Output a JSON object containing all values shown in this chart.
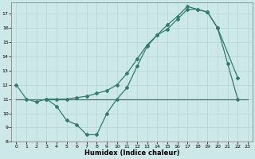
{
  "xlabel": "Humidex (Indice chaleur)",
  "bg_color": "#cde8e8",
  "line_color": "#2e7d6e",
  "xlim": [
    -0.5,
    23.5
  ],
  "ylim": [
    8,
    17.8
  ],
  "yticks": [
    8,
    9,
    10,
    11,
    12,
    13,
    14,
    15,
    16,
    17
  ],
  "xticks": [
    0,
    1,
    2,
    3,
    4,
    5,
    6,
    7,
    8,
    9,
    10,
    11,
    12,
    13,
    14,
    15,
    16,
    17,
    18,
    19,
    20,
    21,
    22,
    23
  ],
  "line1_x": [
    0,
    23
  ],
  "line1_y": [
    11,
    11
  ],
  "line2_x": [
    0,
    1,
    2,
    3,
    4,
    5,
    6,
    7,
    8,
    9,
    10,
    11,
    12,
    13,
    14,
    15,
    16,
    17,
    18,
    19,
    20,
    21,
    22
  ],
  "line2_y": [
    12,
    11,
    10.8,
    11,
    10.5,
    9.5,
    9.2,
    8.5,
    8.5,
    10.0,
    11.0,
    11.8,
    13.3,
    14.7,
    15.5,
    15.9,
    16.6,
    17.3,
    17.3,
    17.1,
    16.0,
    13.5,
    11.0
  ],
  "line3_x": [
    3,
    4,
    5,
    6,
    7,
    8,
    9,
    10,
    11,
    12,
    13,
    14,
    15,
    16,
    17,
    18,
    19,
    20,
    22
  ],
  "line3_y": [
    11,
    11,
    11,
    11.1,
    11.2,
    11.4,
    11.6,
    12.0,
    12.8,
    13.8,
    14.8,
    15.5,
    16.2,
    16.8,
    17.5,
    17.3,
    17.1,
    16.0,
    12.5
  ]
}
